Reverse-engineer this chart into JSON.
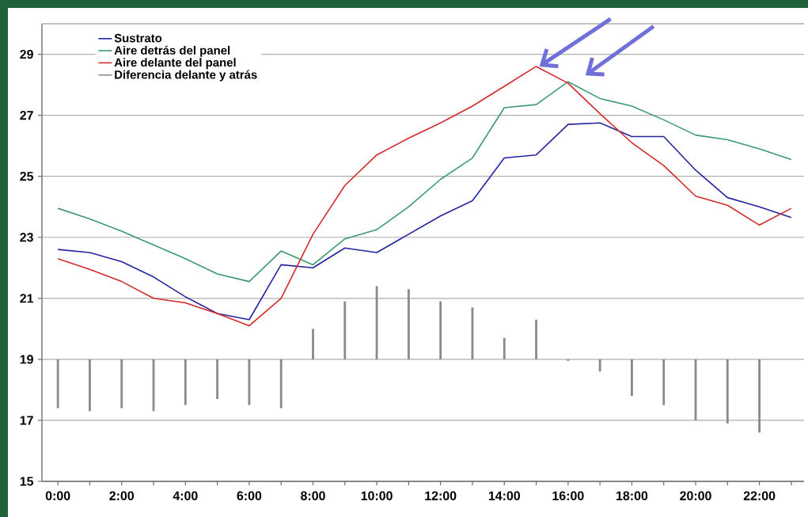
{
  "chart_data": {
    "type": "line",
    "categories": [
      "0:00",
      null,
      "2:00",
      null,
      "4:00",
      null,
      "6:00",
      null,
      "8:00",
      null,
      "10:00",
      null,
      "12:00",
      null,
      "14:00",
      null,
      "16:00",
      null,
      "18:00",
      null,
      "20:00",
      null,
      "22:00",
      null
    ],
    "series": [
      {
        "name": "Sustrato",
        "color": "#2424a0",
        "values": [
          22.6,
          22.5,
          22.2,
          21.7,
          21.05,
          20.5,
          20.3,
          22.1,
          22.0,
          22.65,
          22.5,
          23.1,
          23.7,
          24.2,
          25.6,
          25.7,
          26.7,
          26.75,
          26.3,
          26.3,
          25.2,
          24.3,
          24.0,
          23.65
        ]
      },
      {
        "name": "Aire detrás del panel",
        "color": "#3c9a70",
        "values": [
          23.95,
          23.6,
          23.2,
          22.75,
          22.3,
          21.8,
          21.55,
          22.55,
          22.1,
          22.95,
          23.25,
          24.0,
          24.9,
          25.6,
          27.25,
          27.35,
          28.1,
          27.55,
          27.3,
          26.85,
          26.35,
          26.2,
          25.9,
          25.55
        ]
      },
      {
        "name": "Aire delante del panel",
        "color": "#d42a2a",
        "values": [
          22.3,
          21.95,
          21.55,
          21.0,
          20.85,
          20.5,
          20.1,
          21.0,
          23.1,
          24.7,
          25.7,
          26.25,
          26.75,
          27.3,
          27.95,
          28.6,
          28.05,
          27.05,
          26.1,
          25.35,
          24.35,
          24.05,
          23.4,
          23.95
        ]
      },
      {
        "name": "Diferencia delante y atrás",
        "color": "#8a8a8a",
        "type": "bar",
        "base": [
          19,
          19,
          19,
          19,
          19,
          19,
          19,
          19,
          19,
          19,
          19,
          19,
          19,
          19,
          19,
          19,
          19,
          19,
          19,
          19,
          19,
          19,
          19,
          null
        ],
        "values": [
          -1.6,
          -1.7,
          -1.6,
          -1.7,
          -1.5,
          -1.3,
          -1.5,
          -1.6,
          1.0,
          1.9,
          2.4,
          2.3,
          1.9,
          1.7,
          0.7,
          1.3,
          -0.05,
          -0.4,
          -1.2,
          -1.5,
          -2.0,
          -2.1,
          -2.4,
          null
        ]
      }
    ],
    "ylim": [
      15,
      30
    ],
    "yticks": [
      15,
      17,
      19,
      21,
      23,
      25,
      27,
      29
    ],
    "grid": "y",
    "legend": "top left"
  }
}
